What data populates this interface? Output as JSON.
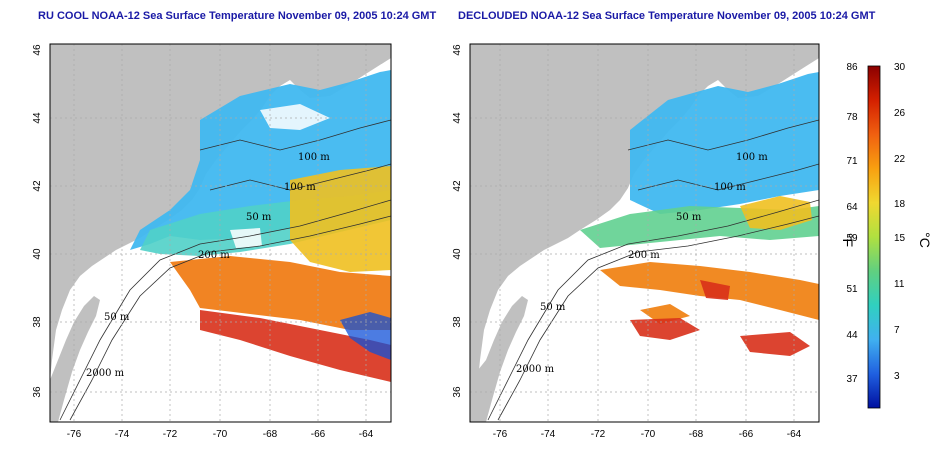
{
  "titles": {
    "left": "RU COOL NOAA-12 Sea Surface Temperature November 09, 2005 10:24 GMT",
    "right": "DECLOUDED NOAA-12 Sea Surface Temperature November 09, 2005 10:24 GMT"
  },
  "axes": {
    "lon_ticks": [
      "-76",
      "-74",
      "-72",
      "-70",
      "-68",
      "-66",
      "-64"
    ],
    "lat_ticks": [
      "46",
      "44",
      "42",
      "40",
      "38",
      "36"
    ]
  },
  "contour_labels": {
    "left": [
      "100 m",
      "100 m",
      "50 m",
      "200 m",
      "50 m",
      "2000 m"
    ],
    "right": [
      "100 m",
      "100 m",
      "50 m",
      "200 m",
      "50 m",
      "2000 m"
    ]
  },
  "colorbar": {
    "fahrenheit_ticks": [
      "86",
      "78",
      "71",
      "64",
      "59",
      "51",
      "44",
      "37"
    ],
    "celsius_ticks": [
      "30",
      "26",
      "22",
      "18",
      "15",
      "11",
      "7",
      "3"
    ],
    "fahrenheit_unit": "°F",
    "celsius_unit": "°C",
    "colors": [
      "#8b0000",
      "#d42000",
      "#f06010",
      "#f8a010",
      "#f0d830",
      "#b0e040",
      "#60d080",
      "#30d0c0",
      "#40b0f0",
      "#2060e0",
      "#0010a0"
    ]
  },
  "colors": {
    "land": "#c0c0c0",
    "ocean_blank": "#ffffff",
    "title": "#1a1aa6",
    "grid": "#aaaaaa"
  }
}
